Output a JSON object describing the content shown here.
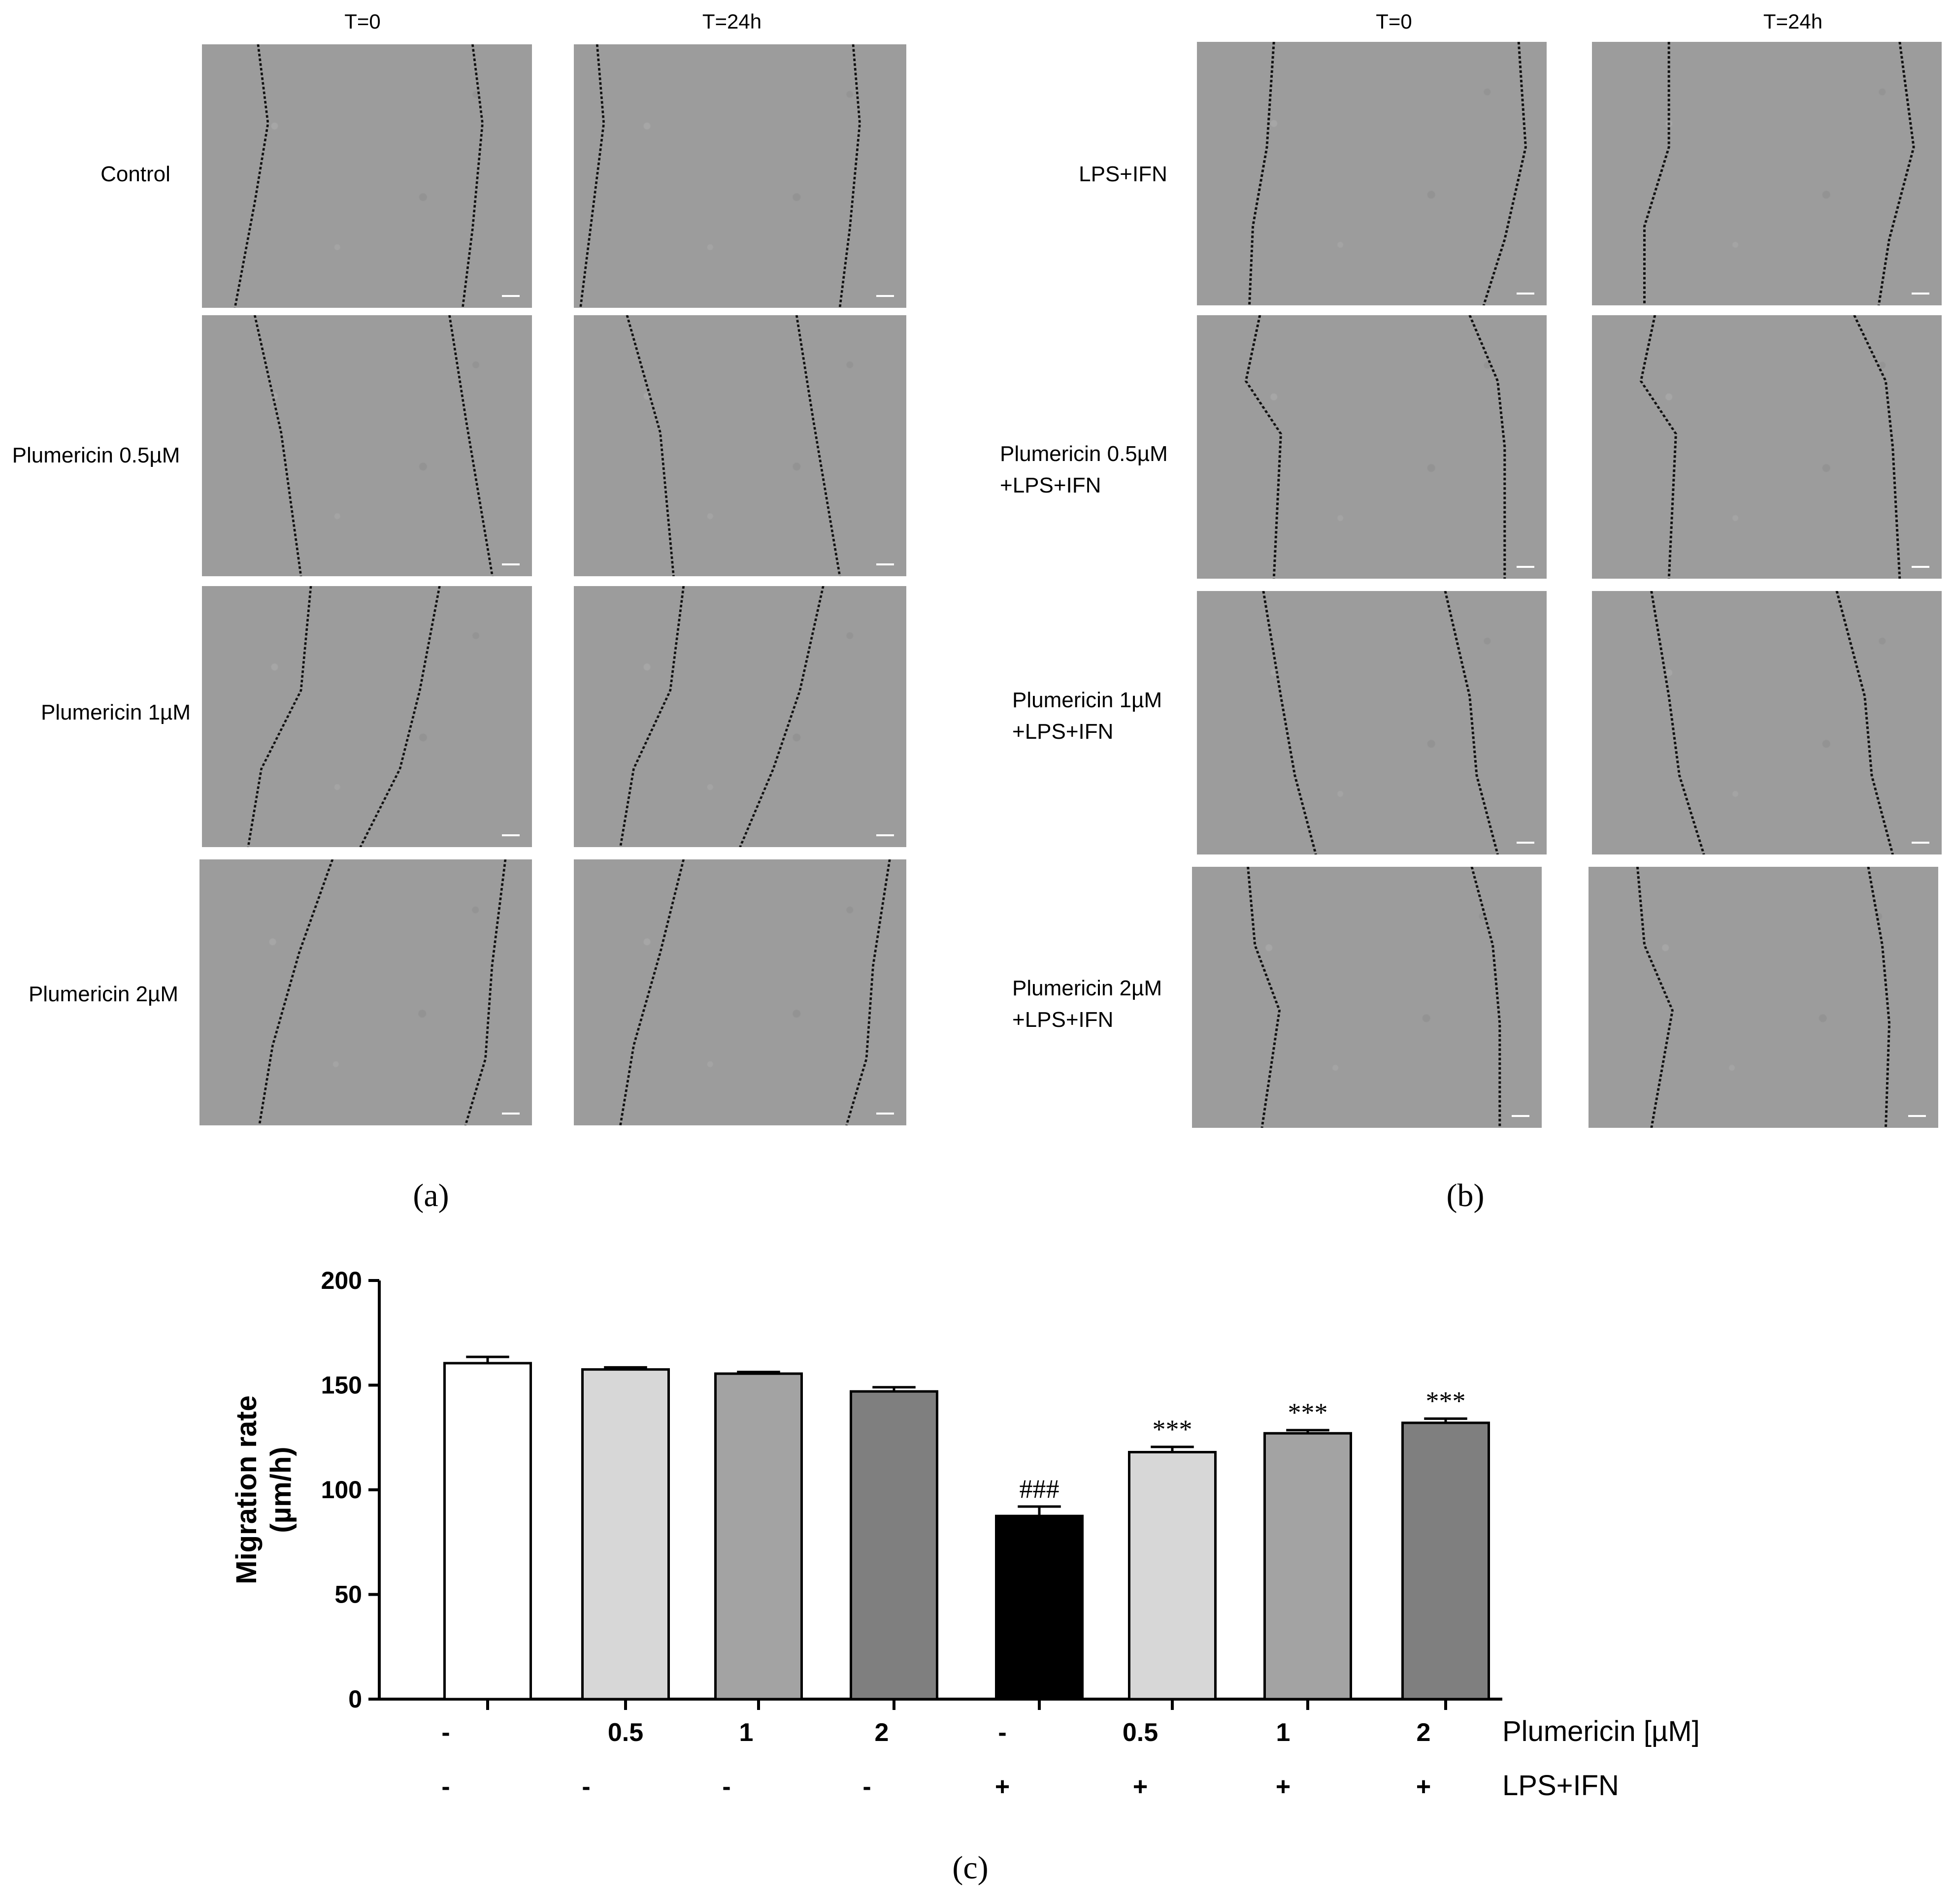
{
  "panel_a": {
    "letter": "(a)",
    "col_headers": [
      "T=0",
      "T=24h"
    ],
    "rows": [
      {
        "label_lines": [
          "Control"
        ]
      },
      {
        "label_lines": [
          "Plumericin 0.5µM"
        ]
      },
      {
        "label_lines": [
          "Plumericin 1µM"
        ]
      },
      {
        "label_lines": [
          "Plumericin 2µM"
        ]
      }
    ]
  },
  "panel_b": {
    "letter": "(b)",
    "col_headers": [
      "T=0",
      "T=24h"
    ],
    "rows": [
      {
        "label_lines": [
          "LPS+IFN"
        ]
      },
      {
        "label_lines": [
          "Plumericin 0.5µM",
          "+LPS+IFN"
        ]
      },
      {
        "label_lines": [
          "Plumericin 1µM",
          "+LPS+IFN"
        ]
      },
      {
        "label_lines": [
          "Plumericin 2µM",
          "+LPS+IFN"
        ]
      }
    ]
  },
  "panel_c": {
    "letter": "(c)"
  },
  "chart_data": {
    "type": "bar",
    "ylabel_lines": [
      "Migration rate",
      "(µm/h)"
    ],
    "ylim": [
      0,
      200
    ],
    "yticks": [
      0,
      50,
      100,
      150,
      200
    ],
    "values": [
      160.5,
      157.5,
      155.5,
      147,
      87.5,
      118,
      127,
      132
    ],
    "errors": [
      3,
      1,
      0.8,
      2,
      4.5,
      2.5,
      1.5,
      2
    ],
    "fills": [
      "#ffffff",
      "#d7d7d7",
      "#a3a3a3",
      "#7f7f7f",
      "#000000",
      "#d7d7d7",
      "#a3a3a3",
      "#7f7f7f"
    ],
    "annotations": [
      "",
      "",
      "",
      "",
      "###",
      "***",
      "***",
      "***"
    ],
    "factor_rows": [
      {
        "label": "Plumericin [µM]",
        "values": [
          "-",
          "0.5",
          "1",
          "2",
          "-",
          "0.5",
          "1",
          "2"
        ]
      },
      {
        "label": "LPS+IFN",
        "values": [
          "-",
          "-",
          "-",
          "-",
          "+",
          "+",
          "+",
          "+"
        ]
      }
    ]
  }
}
